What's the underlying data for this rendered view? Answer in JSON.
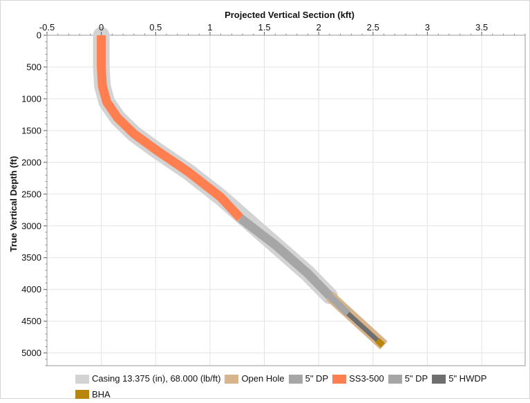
{
  "chart_data": {
    "type": "line",
    "title": "",
    "xlabel": "Projected Vertical Section (kft)",
    "ylabel": "True Vertical Depth (ft)",
    "x_axis_position": "top",
    "y_axis_inverted": true,
    "xlim": [
      -0.5,
      3.9
    ],
    "ylim": [
      0,
      5200
    ],
    "xticks": [
      "-0.5",
      "0",
      "0.5",
      "1",
      "1.5",
      "2",
      "2.5",
      "3",
      "3.5"
    ],
    "yticks": [
      "0",
      "500",
      "1000",
      "1500",
      "2000",
      "2500",
      "3000",
      "3500",
      "4000",
      "4500",
      "5000"
    ],
    "grid": true,
    "legend_position": "bottom",
    "series": [
      {
        "name": "Casing 13.375 (in), 68.000 (lb/ft)",
        "color": "#d3d3d3",
        "x": [
          0.0,
          0.0,
          0.01,
          0.05,
          0.15,
          0.3,
          0.5,
          0.8,
          1.1,
          1.3,
          1.6,
          1.9,
          2.1
        ],
        "y": [
          0,
          500,
          800,
          1050,
          1300,
          1550,
          1800,
          2150,
          2550,
          2850,
          3300,
          3750,
          4100
        ]
      },
      {
        "name": "Open Hole",
        "color": "#d8b48c",
        "x": [
          2.1,
          2.6
        ],
        "y": [
          4100,
          4880
        ]
      },
      {
        "name": "5\" DP",
        "color": "#a6a6a6",
        "x": [
          2.1,
          2.27
        ],
        "y": [
          4100,
          4380
        ]
      },
      {
        "name": "SS3-500",
        "color": "#ff7f50",
        "x": [
          0.0,
          0.0,
          0.01,
          0.05,
          0.15,
          0.3,
          0.5,
          0.8,
          1.1,
          1.28
        ],
        "y": [
          0,
          500,
          800,
          1050,
          1300,
          1550,
          1800,
          2150,
          2550,
          2880
        ]
      },
      {
        "name": "5\" DP",
        "color": "#a6a6a6",
        "x": [
          1.28,
          1.6,
          1.9,
          2.1
        ],
        "y": [
          2880,
          3300,
          3750,
          4100
        ]
      },
      {
        "name": "5\" HWDP",
        "color": "#6e6e6e",
        "x": [
          2.27,
          2.54
        ],
        "y": [
          4380,
          4800
        ]
      },
      {
        "name": "BHA",
        "color": "#b8860b",
        "x": [
          2.54,
          2.59
        ],
        "y": [
          4800,
          4880
        ]
      }
    ]
  }
}
